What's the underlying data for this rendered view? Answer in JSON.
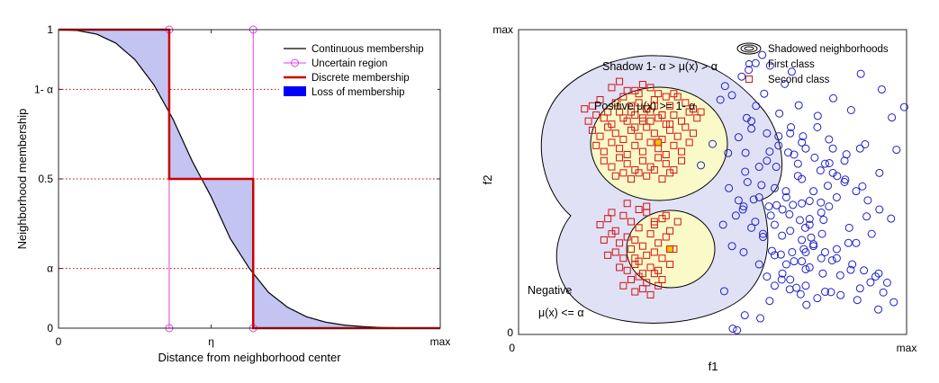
{
  "chart_data": [
    {
      "type": "line",
      "xlabel": "Distance from neighborhood center",
      "ylabel": "Neighborhood membership",
      "xlim": [
        0,
        1
      ],
      "ylim": [
        0,
        1
      ],
      "alpha": 0.2,
      "eta": 0.4,
      "x_ticks": [
        {
          "value": 0,
          "label": "0"
        },
        {
          "value": 0.4,
          "label": "η"
        },
        {
          "value": 1,
          "label": "max"
        }
      ],
      "y_ticks": [
        {
          "value": 0,
          "label": "0"
        },
        {
          "value": 0.2,
          "label": "α"
        },
        {
          "value": 0.5,
          "label": "0.5"
        },
        {
          "value": 0.8,
          "label": "1- α"
        },
        {
          "value": 1,
          "label": "1"
        }
      ],
      "legend_position": "top-right",
      "series": [
        {
          "name": "Continuous membership",
          "color": "#000000",
          "x": [
            0,
            0.05,
            0.1,
            0.15,
            0.2,
            0.25,
            0.3,
            0.35,
            0.4,
            0.45,
            0.5,
            0.55,
            0.6,
            0.65,
            0.7,
            0.75,
            0.8,
            0.85,
            0.9,
            0.95,
            1
          ],
          "y": [
            1,
            0.997,
            0.985,
            0.955,
            0.9,
            0.815,
            0.7,
            0.56,
            0.44,
            0.3,
            0.2,
            0.12,
            0.07,
            0.038,
            0.02,
            0.01,
            0.005,
            0.002,
            0.001,
            0,
            0
          ]
        },
        {
          "name": "Uncertain region",
          "color": "#e040e0",
          "x_bounds": [
            0.29,
            0.51
          ],
          "y_bounds": [
            0,
            1
          ]
        },
        {
          "name": "Discrete membership",
          "color": "#cc0000",
          "x": [
            0,
            0.29,
            0.29,
            0.29,
            0.51,
            0.51,
            1
          ],
          "y": [
            1,
            1,
            0.5,
            0.5,
            0.5,
            0,
            0
          ]
        },
        {
          "name": "Loss of membership",
          "color": "#0000ff",
          "fill": "#c4c4f2"
        }
      ]
    },
    {
      "type": "scatter",
      "xlabel": "f1",
      "ylabel": "f2",
      "x_ticks": [
        {
          "value": 0,
          "label": "0"
        },
        {
          "value": 1,
          "label": "max"
        }
      ],
      "y_ticks": [
        {
          "value": 0,
          "label": "0"
        },
        {
          "value": 1,
          "label": "max"
        }
      ],
      "legend_position": "top-right",
      "legend": [
        {
          "name": "Shadowed neighborhoods",
          "marker": "concentric-ellipses"
        },
        {
          "name": "First class",
          "marker": "circle",
          "color": "#1f1fc8"
        },
        {
          "name": "Second class",
          "marker": "square",
          "color": "#d01414"
        }
      ],
      "annotations": {
        "shadow": "Shadow 1- α > μ(x) > α",
        "positive": "Positive μ(x) >= 1- α",
        "negative_title": "Negative",
        "negative_condition": "μ(x) <= α"
      },
      "regions": {
        "shadow_fill": "#e1e1f5",
        "positive_fill": "#fafac8"
      },
      "series": [
        {
          "name": "First class",
          "color": "#1f1fc8",
          "x": [
            0.575,
            0.593,
            0.611,
            0.628,
            0.648,
            0.633,
            0.686,
            0.704,
            0.672,
            0.722,
            0.6,
            0.64,
            0.55,
            0.52,
            0.532,
            0.47,
            0.5,
            0.54,
            0.6,
            0.664,
            0.695,
            0.733,
            0.771,
            0.811,
            0.857,
            0.882,
            0.936,
            0.962,
            0.994,
            0.974,
            0.893,
            0.845,
            0.801,
            0.842,
            0.797,
            0.779,
            0.75,
            0.707,
            0.786,
            0.75,
            0.725,
            0.754,
            0.679,
            0.653,
            0.676,
            0.705,
            0.735,
            0.76,
            0.74,
            0.716,
            0.784,
            0.808,
            0.829,
            0.856,
            0.88,
            0.907,
            0.928,
            0.94,
            0.967,
            0.927,
            0.873,
            0.83,
            0.805,
            0.77,
            0.742,
            0.727,
            0.699,
            0.678,
            0.647,
            0.623,
            0.583,
            0.563,
            0.552,
            0.53,
            0.527,
            0.578,
            0.606,
            0.645,
            0.689,
            0.73,
            0.778,
            0.821,
            0.886,
            0.897,
            0.852,
            0.782,
            0.739,
            0.698,
            0.665,
            0.626,
            0.584,
            0.585,
            0.567,
            0.588,
            0.612,
            0.567,
            0.542,
            0.59,
            0.62,
            0.647,
            0.67,
            0.702,
            0.73,
            0.763,
            0.79,
            0.81,
            0.84,
            0.87,
            0.9,
            0.93,
            0.96,
            0.85,
            0.74,
            0.71,
            0.75,
            0.68,
            0.66,
            0.63,
            0.61,
            0.66,
            0.7,
            0.73,
            0.76,
            0.79,
            0.82,
            0.86,
            0.89,
            0.92,
            0.95,
            0.69,
            0.72,
            0.82,
            0.76,
            0.8,
            0.66,
            0.62,
            0.58,
            0.56,
            0.6,
            0.63,
            0.65,
            0.68,
            0.73,
            0.75,
            0.78,
            0.72,
            0.74,
            0.8,
            0.84,
            0.88,
            0.93,
            0.71,
            0.67,
            0.64,
            0.7,
            0.77,
            0.81,
            0.55,
            0.58,
            0.62,
            0.64,
            0.69,
            0.73,
            0.78,
            0.82,
            0.87,
            0.91,
            0.66,
            0.7,
            0.74,
            0.79
          ],
          "y": [
            0.846,
            0.868,
            0.89,
            0.917,
            0.882,
            0.79,
            0.822,
            0.862,
            0.725,
            0.752,
            0.7,
            0.66,
            0.785,
            0.77,
            0.815,
            0.555,
            0.625,
            0.595,
            0.675,
            0.55,
            0.597,
            0.65,
            0.717,
            0.775,
            0.736,
            0.855,
            0.804,
            0.712,
            0.746,
            0.606,
            0.624,
            0.591,
            0.562,
            0.508,
            0.488,
            0.433,
            0.438,
            0.425,
            0.376,
            0.379,
            0.375,
            0.318,
            0.324,
            0.274,
            0.262,
            0.27,
            0.28,
            0.296,
            0.214,
            0.153,
            0.2,
            0.243,
            0.194,
            0.212,
            0.151,
            0.171,
            0.2,
            0.138,
            0.106,
            0.082,
            0.113,
            0.129,
            0.139,
            0.119,
            0.097,
            0.132,
            0.148,
            0.18,
            0.11,
            0.053,
            0.063,
            0.014,
            0.019,
            0.142,
            0.36,
            0.41,
            0.443,
            0.42,
            0.47,
            0.51,
            0.538,
            0.52,
            0.486,
            0.387,
            0.35,
            0.33,
            0.35,
            0.394,
            0.424,
            0.49,
            0.534,
            0.596,
            0.647,
            0.71,
            0.75,
            0.44,
            0.48,
            0.5,
            0.55,
            0.6,
            0.65,
            0.68,
            0.63,
            0.58,
            0.56,
            0.53,
            0.5,
            0.47,
            0.44,
            0.41,
            0.38,
            0.3,
            0.27,
            0.24,
            0.22,
            0.2,
            0.26,
            0.32,
            0.37,
            0.36,
            0.34,
            0.31,
            0.29,
            0.27,
            0.25,
            0.23,
            0.21,
            0.19,
            0.17,
            0.45,
            0.52,
            0.45,
            0.47,
            0.42,
            0.48,
            0.45,
            0.42,
            0.39,
            0.35,
            0.33,
            0.39,
            0.41,
            0.43,
            0.36,
            0.4,
            0.56,
            0.61,
            0.64,
            0.57,
            0.61,
            0.53,
            0.59,
            0.62,
            0.57,
            0.66,
            0.68,
            0.61,
            0.29,
            0.27,
            0.23,
            0.19,
            0.23,
            0.24,
            0.25,
            0.28,
            0.3,
            0.33,
            0.16,
            0.18,
            0.16,
            0.14
          ]
        },
        {
          "name": "Second class",
          "color": "#d01414",
          "x": [
            0.17,
            0.19,
            0.21,
            0.23,
            0.25,
            0.27,
            0.29,
            0.31,
            0.33,
            0.35,
            0.37,
            0.39,
            0.41,
            0.43,
            0.45,
            0.47,
            0.18,
            0.2,
            0.22,
            0.24,
            0.26,
            0.28,
            0.3,
            0.32,
            0.34,
            0.36,
            0.38,
            0.4,
            0.42,
            0.44,
            0.46,
            0.19,
            0.21,
            0.23,
            0.25,
            0.27,
            0.29,
            0.31,
            0.33,
            0.35,
            0.37,
            0.39,
            0.41,
            0.43,
            0.45,
            0.2,
            0.22,
            0.24,
            0.26,
            0.28,
            0.3,
            0.32,
            0.34,
            0.36,
            0.38,
            0.4,
            0.42,
            0.44,
            0.22,
            0.24,
            0.26,
            0.28,
            0.3,
            0.32,
            0.34,
            0.36,
            0.38,
            0.4,
            0.42,
            0.25,
            0.27,
            0.29,
            0.31,
            0.33,
            0.35,
            0.37,
            0.39,
            0.3,
            0.32,
            0.34,
            0.36,
            0.28,
            0.38,
            0.24,
            0.4,
            0.26,
            0.33,
            0.31,
            0.35,
            0.29,
            0.37,
            0.27,
            0.39,
            0.3,
            0.34,
            0.32,
            0.21,
            0.23,
            0.25,
            0.27,
            0.29,
            0.31,
            0.33,
            0.35,
            0.37,
            0.39,
            0.41,
            0.22,
            0.24,
            0.26,
            0.28,
            0.3,
            0.32,
            0.34,
            0.36,
            0.38,
            0.4,
            0.23,
            0.25,
            0.27,
            0.29,
            0.31,
            0.33,
            0.35,
            0.37,
            0.39,
            0.26,
            0.28,
            0.3,
            0.32,
            0.34,
            0.36,
            0.29,
            0.31,
            0.33,
            0.35,
            0.27,
            0.37,
            0.3,
            0.32,
            0.34,
            0.36,
            0.31,
            0.33,
            0.24,
            0.38,
            0.28,
            0.35,
            0.3
          ],
          "y": [
            0.74,
            0.75,
            0.77,
            0.73,
            0.76,
            0.78,
            0.75,
            0.79,
            0.74,
            0.77,
            0.72,
            0.75,
            0.78,
            0.76,
            0.74,
            0.73,
            0.7,
            0.72,
            0.71,
            0.69,
            0.73,
            0.7,
            0.72,
            0.7,
            0.73,
            0.71,
            0.69,
            0.72,
            0.7,
            0.73,
            0.71,
            0.67,
            0.65,
            0.68,
            0.66,
            0.64,
            0.67,
            0.65,
            0.68,
            0.66,
            0.64,
            0.67,
            0.65,
            0.68,
            0.66,
            0.62,
            0.6,
            0.63,
            0.61,
            0.59,
            0.62,
            0.6,
            0.63,
            0.61,
            0.59,
            0.62,
            0.6,
            0.63,
            0.57,
            0.55,
            0.58,
            0.56,
            0.54,
            0.57,
            0.55,
            0.58,
            0.56,
            0.54,
            0.57,
            0.52,
            0.53,
            0.51,
            0.53,
            0.52,
            0.54,
            0.51,
            0.53,
            0.8,
            0.82,
            0.81,
            0.79,
            0.8,
            0.78,
            0.81,
            0.79,
            0.83,
            0.74,
            0.76,
            0.75,
            0.73,
            0.72,
            0.71,
            0.69,
            0.68,
            0.7,
            0.71,
            0.36,
            0.38,
            0.34,
            0.39,
            0.37,
            0.35,
            0.4,
            0.36,
            0.38,
            0.34,
            0.37,
            0.31,
            0.33,
            0.3,
            0.32,
            0.31,
            0.29,
            0.33,
            0.3,
            0.32,
            0.28,
            0.26,
            0.27,
            0.25,
            0.28,
            0.24,
            0.26,
            0.27,
            0.25,
            0.23,
            0.22,
            0.21,
            0.23,
            0.2,
            0.22,
            0.21,
            0.18,
            0.19,
            0.17,
            0.2,
            0.16,
            0.18,
            0.14,
            0.15,
            0.13,
            0.16,
            0.41,
            0.42,
            0.4,
            0.39,
            0.43,
            0.37,
            0.25
          ]
        }
      ]
    }
  ]
}
